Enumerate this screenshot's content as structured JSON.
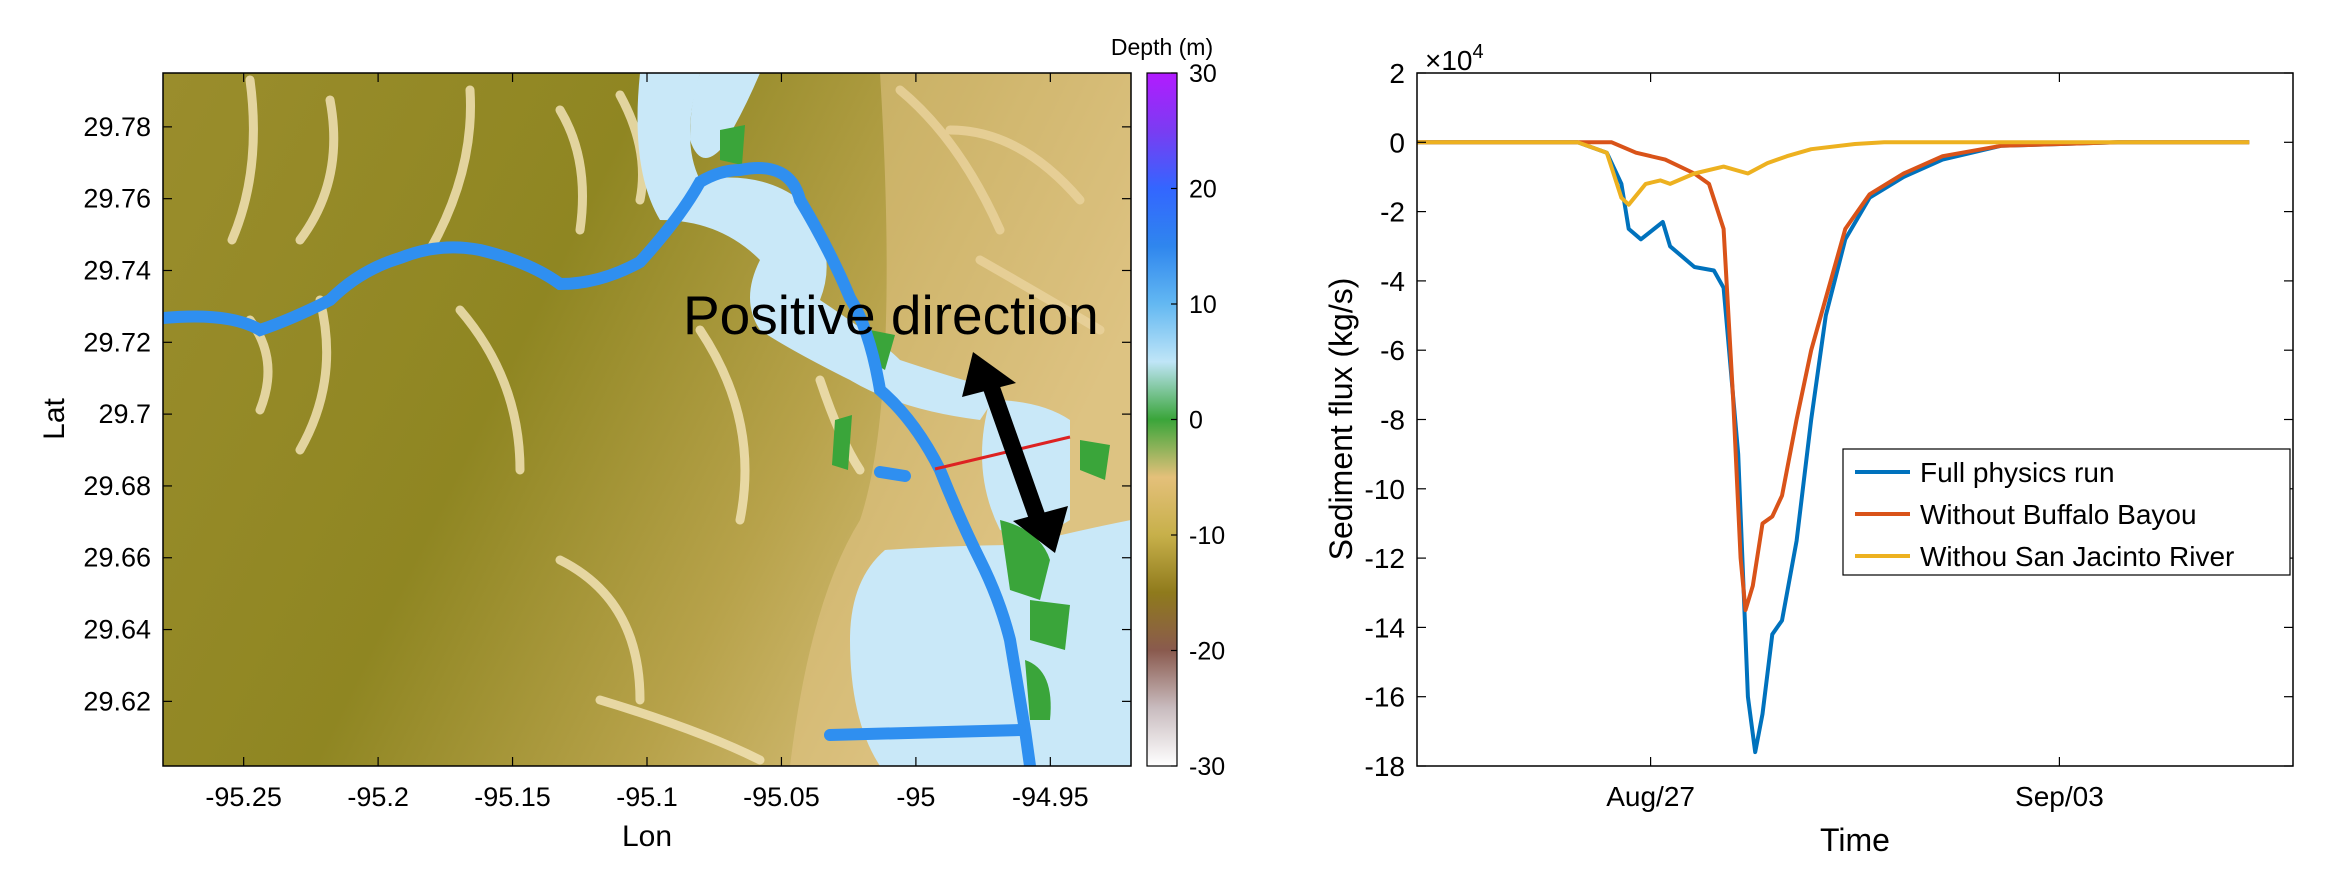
{
  "chart_data": [
    {
      "type": "heatmap",
      "title": "",
      "xlabel": "Lon",
      "ylabel": "Lat",
      "xlim": [
        -95.28,
        -94.92
      ],
      "ylim": [
        29.602,
        29.795
      ],
      "xticks": [
        "-95.25",
        "-95.2",
        "-95.15",
        "-95.1",
        "-95.05",
        "-95",
        "-94.95"
      ],
      "yticks": [
        "29.78",
        "29.76",
        "29.74",
        "29.72",
        "29.7",
        "29.68",
        "29.66",
        "29.64",
        "29.62"
      ],
      "colorbar": {
        "label": "Depth (m)",
        "range": [
          -30,
          30
        ],
        "ticks": [
          "30",
          "20",
          "10",
          "0",
          "-10",
          "-20",
          "-30"
        ],
        "colors": [
          "#ffffff",
          "#c9bcbf",
          "#8a5a4e",
          "#8f7a1c",
          "#c7b04a",
          "#e4c07a",
          "#3aa53a",
          "#bfe5f7",
          "#63b8f2",
          "#2f86ee",
          "#3366ff",
          "#7a3cf2",
          "#b21bff"
        ]
      },
      "annotations": [
        "Positive direction"
      ],
      "colors": {
        "land_low": "#8c861f",
        "land_high": "#f3e3b8",
        "water": "#c9e8f8",
        "channel": "#2f8ff0",
        "marsh": "#3aa53a",
        "transect": "#dd2222",
        "arrow": "#000000"
      }
    },
    {
      "type": "line",
      "title": "",
      "xlabel": "Time",
      "ylabel": "Sediment flux (kg/s)",
      "y_multiplier": "×10",
      "y_multiplier_exp": "4",
      "ylim": [
        -18,
        2
      ],
      "yticks": [
        2,
        0,
        -2,
        -4,
        -6,
        -8,
        -10,
        -12,
        -14,
        -16,
        -18
      ],
      "xlim": [
        "2017-08-23",
        "2017-09-07"
      ],
      "xticks": [
        {
          "date": "2017-08-27",
          "label": "Aug/27"
        },
        {
          "date": "2017-09-03",
          "label": "Sep/03"
        }
      ],
      "legend_position": "center-right",
      "grid": false,
      "series": [
        {
          "name": "Full physics run",
          "color": "#0072bd",
          "points": [
            [
              "2017-08-23",
              0
            ],
            [
              "2017-08-25",
              0
            ],
            [
              "2017-08-25 18:00",
              0
            ],
            [
              "2017-08-26 06:00",
              -0.3
            ],
            [
              "2017-08-26 12:00",
              -1.2
            ],
            [
              "2017-08-26 15:00",
              -2.5
            ],
            [
              "2017-08-26 20:00",
              -2.8
            ],
            [
              "2017-08-27 05:00",
              -2.3
            ],
            [
              "2017-08-27 08:00",
              -3.0
            ],
            [
              "2017-08-27 18:00",
              -3.6
            ],
            [
              "2017-08-28 02:00",
              -3.7
            ],
            [
              "2017-08-28 06:00",
              -4.2
            ],
            [
              "2017-08-28 12:00",
              -9.0
            ],
            [
              "2017-08-28 16:00",
              -16.0
            ],
            [
              "2017-08-28 19:00",
              -17.6
            ],
            [
              "2017-08-28 22:00",
              -16.5
            ],
            [
              "2017-08-29 02:00",
              -14.2
            ],
            [
              "2017-08-29 06:00",
              -13.8
            ],
            [
              "2017-08-29 12:00",
              -11.5
            ],
            [
              "2017-08-29 18:00",
              -8.0
            ],
            [
              "2017-08-30 00:00",
              -5.0
            ],
            [
              "2017-08-30 08:00",
              -2.8
            ],
            [
              "2017-08-30 18:00",
              -1.6
            ],
            [
              "2017-08-31 08:00",
              -1.0
            ],
            [
              "2017-09-01",
              -0.5
            ],
            [
              "2017-09-02",
              -0.1
            ],
            [
              "2017-09-04",
              0
            ],
            [
              "2017-09-06 06:00",
              0
            ]
          ]
        },
        {
          "name": "Without Buffalo Bayou",
          "color": "#d95319",
          "points": [
            [
              "2017-08-23",
              0
            ],
            [
              "2017-08-25 18:00",
              0
            ],
            [
              "2017-08-26 08:00",
              0
            ],
            [
              "2017-08-26 18:00",
              -0.3
            ],
            [
              "2017-08-27 06:00",
              -0.5
            ],
            [
              "2017-08-27 18:00",
              -0.9
            ],
            [
              "2017-08-28 00:00",
              -1.2
            ],
            [
              "2017-08-28 06:00",
              -2.5
            ],
            [
              "2017-08-28 10:00",
              -7.5
            ],
            [
              "2017-08-28 13:00",
              -12.0
            ],
            [
              "2017-08-28 15:00",
              -13.5
            ],
            [
              "2017-08-28 18:00",
              -12.8
            ],
            [
              "2017-08-28 22:00",
              -11.0
            ],
            [
              "2017-08-29 02:00",
              -10.8
            ],
            [
              "2017-08-29 06:00",
              -10.2
            ],
            [
              "2017-08-29 12:00",
              -8.0
            ],
            [
              "2017-08-29 18:00",
              -6.0
            ],
            [
              "2017-08-30 00:00",
              -4.5
            ],
            [
              "2017-08-30 08:00",
              -2.5
            ],
            [
              "2017-08-30 18:00",
              -1.5
            ],
            [
              "2017-08-31 08:00",
              -0.9
            ],
            [
              "2017-09-01",
              -0.4
            ],
            [
              "2017-09-02",
              -0.1
            ],
            [
              "2017-09-04",
              0
            ],
            [
              "2017-09-06 06:00",
              0
            ]
          ]
        },
        {
          "name": "Withou San Jacinto River",
          "color": "#edb120",
          "points": [
            [
              "2017-08-23",
              0
            ],
            [
              "2017-08-25 18:00",
              0
            ],
            [
              "2017-08-26 06:00",
              -0.3
            ],
            [
              "2017-08-26 12:00",
              -1.6
            ],
            [
              "2017-08-26 15:00",
              -1.8
            ],
            [
              "2017-08-26 22:00",
              -1.2
            ],
            [
              "2017-08-27 04:00",
              -1.1
            ],
            [
              "2017-08-27 08:00",
              -1.2
            ],
            [
              "2017-08-27 18:00",
              -0.9
            ],
            [
              "2017-08-28 06:00",
              -0.7
            ],
            [
              "2017-08-28 16:00",
              -0.9
            ],
            [
              "2017-08-29 00:00",
              -0.6
            ],
            [
              "2017-08-29 08:00",
              -0.4
            ],
            [
              "2017-08-29 18:00",
              -0.2
            ],
            [
              "2017-08-30 12:00",
              -0.05
            ],
            [
              "2017-08-31",
              0
            ],
            [
              "2017-09-06 06:00",
              0
            ]
          ]
        }
      ]
    }
  ]
}
